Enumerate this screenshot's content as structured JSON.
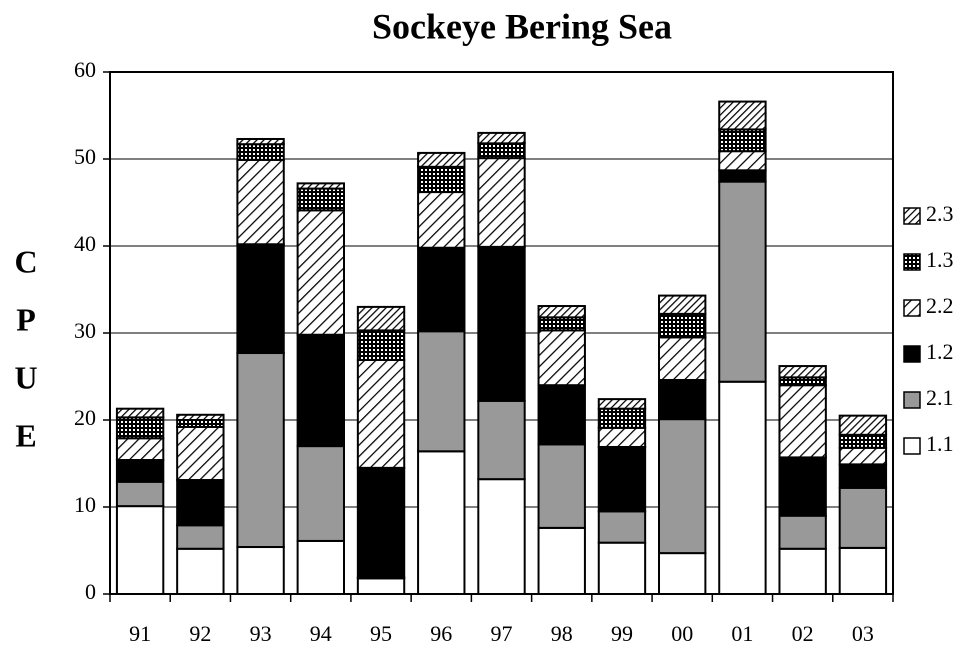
{
  "chart_data": {
    "type": "stacked_bar",
    "title": "Sockeye Bering Sea",
    "y_label": [
      "C",
      "P",
      "U",
      "E"
    ],
    "categories": [
      "91",
      "92",
      "93",
      "94",
      "95",
      "96",
      "97",
      "98",
      "99",
      "00",
      "01",
      "02",
      "03"
    ],
    "series": [
      {
        "name": "1.1",
        "color": "#ffffff",
        "pattern": "solid",
        "values": [
          10.1,
          5.2,
          5.4,
          6.1,
          1.8,
          16.4,
          13.2,
          7.6,
          5.9,
          4.7,
          24.4,
          5.2,
          5.3
        ]
      },
      {
        "name": "2.1",
        "color": "#999999",
        "pattern": "solid",
        "values": [
          2.8,
          2.7,
          22.3,
          10.9,
          0.1,
          13.8,
          9.0,
          9.6,
          3.6,
          15.4,
          23.0,
          3.8,
          6.9
        ]
      },
      {
        "name": "1.2",
        "color": "#000000",
        "pattern": "solid",
        "values": [
          2.5,
          5.2,
          12.5,
          12.8,
          12.6,
          9.6,
          17.7,
          6.8,
          7.4,
          4.5,
          1.3,
          6.7,
          2.7
        ]
      },
      {
        "name": "2.2",
        "color": "#000000",
        "pattern": "diagonal",
        "values": [
          2.5,
          6.1,
          9.7,
          14.3,
          12.4,
          6.4,
          10.2,
          6.3,
          2.2,
          4.9,
          2.2,
          8.3,
          1.9
        ]
      },
      {
        "name": "1.3",
        "color": "#000000",
        "pattern": "vertical",
        "values": [
          2.4,
          0.8,
          1.8,
          2.5,
          3.4,
          2.9,
          1.7,
          1.5,
          2.2,
          2.7,
          2.5,
          0.9,
          1.5
        ]
      },
      {
        "name": "2.3",
        "color": "#000000",
        "pattern": "dense-diagonal",
        "values": [
          1.0,
          0.6,
          0.6,
          0.6,
          2.7,
          1.6,
          1.2,
          1.3,
          1.1,
          2.1,
          3.2,
          1.3,
          2.2
        ]
      }
    ],
    "ylim": [
      0,
      60
    ],
    "yticks": [
      0,
      10,
      20,
      30,
      40,
      50,
      60
    ],
    "grid": true,
    "legend": "right"
  }
}
